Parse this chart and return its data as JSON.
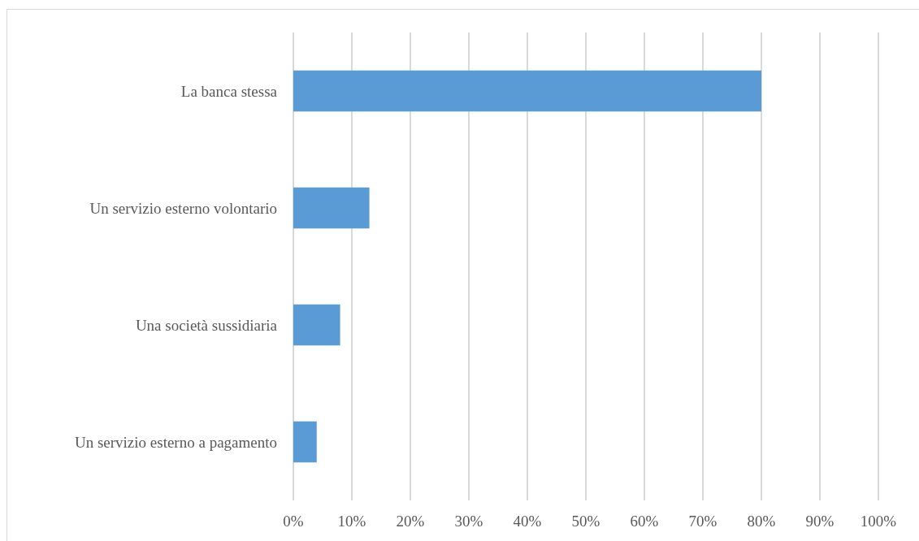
{
  "chart_data": {
    "type": "bar",
    "orientation": "horizontal",
    "categories": [
      "La banca stessa",
      "Un servizio esterno volontario",
      "Una società sussidiaria",
      "Un servizio esterno a pagamento"
    ],
    "values": [
      80,
      13,
      8,
      4
    ],
    "color": "#5b9bd5",
    "xlim": [
      0,
      100
    ],
    "xticks": [
      {
        "value": 0,
        "label": "0%"
      },
      {
        "value": 10,
        "label": "10%"
      },
      {
        "value": 20,
        "label": "20%"
      },
      {
        "value": 30,
        "label": "30%"
      },
      {
        "value": 40,
        "label": "40%"
      },
      {
        "value": 50,
        "label": "50%"
      },
      {
        "value": 60,
        "label": "60%"
      },
      {
        "value": 70,
        "label": "70%"
      },
      {
        "value": 80,
        "label": "80%"
      },
      {
        "value": 90,
        "label": "90%"
      },
      {
        "value": 100,
        "label": "100%"
      }
    ],
    "grid": "x"
  }
}
